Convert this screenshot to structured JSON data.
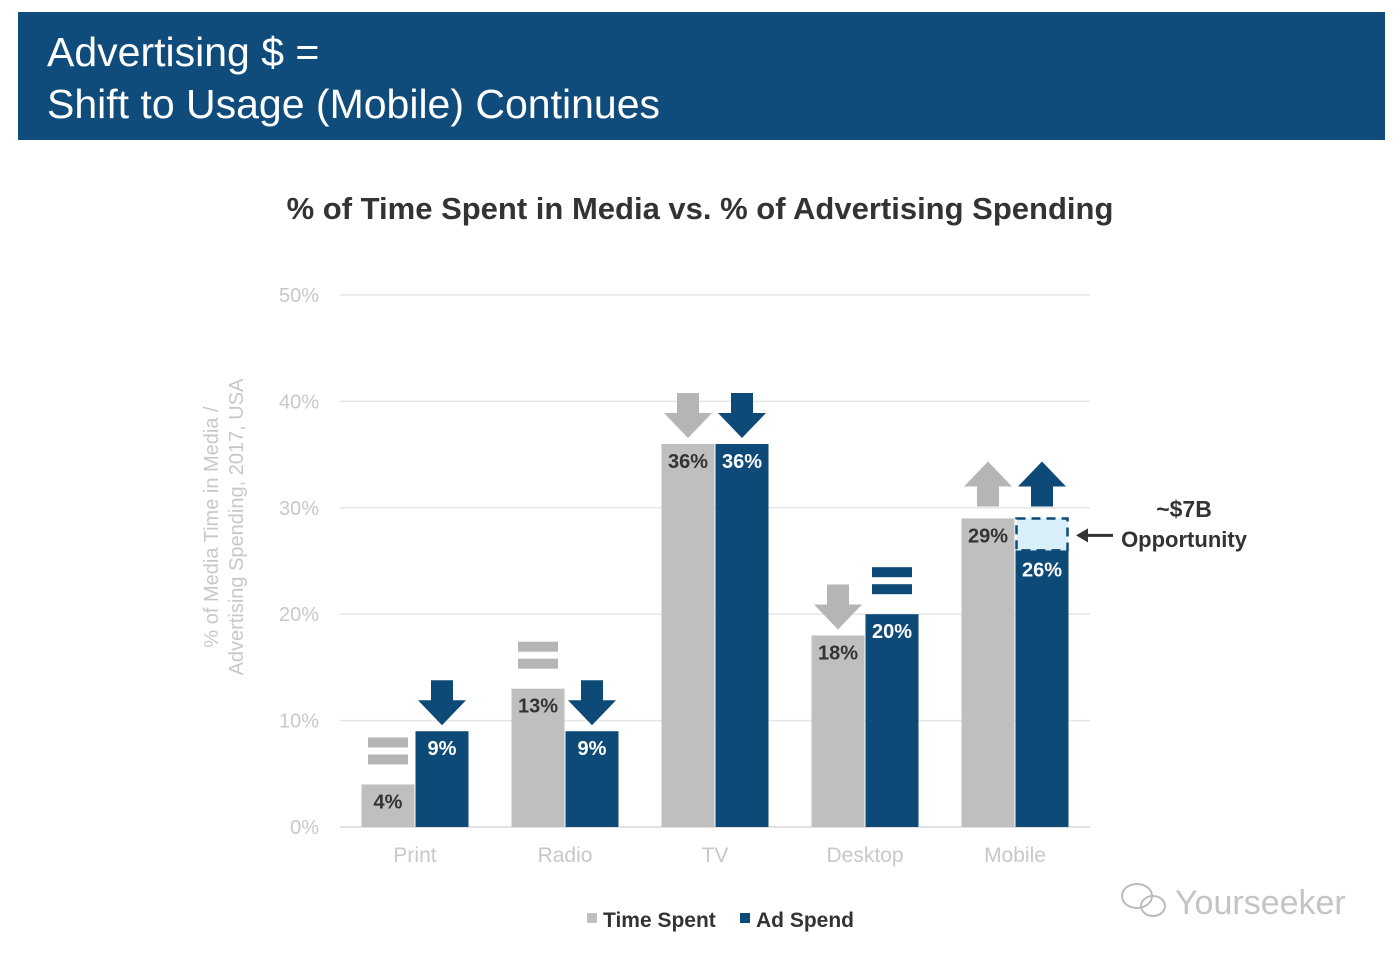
{
  "header": {
    "title_line1": "Advertising $ =",
    "title_line2": "Shift to Usage (Mobile) Continues"
  },
  "colors": {
    "header_bg": "#0f4c7c",
    "time_spent": "#bfbfbf",
    "ad_spend": "#0d4a78",
    "opportunity_fill": "#d9f0fb",
    "text_dark": "#333333",
    "axis_text": "#c8c8c8"
  },
  "chart_data": {
    "type": "bar",
    "title": "% of Time Spent in Media vs. % of Advertising Spending",
    "ylabel_line1": "% of Media Time in Media /",
    "ylabel_line2": "Advertising Spending, 2017, USA",
    "ylim": [
      0,
      50
    ],
    "yticks": [
      "0%",
      "10%",
      "20%",
      "30%",
      "40%",
      "50%"
    ],
    "grid": true,
    "legend_placement": "bottom",
    "categories": [
      "Print",
      "Radio",
      "TV",
      "Desktop",
      "Mobile"
    ],
    "series": [
      {
        "name": "Time Spent",
        "values": [
          4,
          13,
          36,
          18,
          29
        ],
        "labels": [
          "4%",
          "13%",
          "36%",
          "18%",
          "29%"
        ],
        "trend": [
          "flat",
          "flat",
          "down",
          "down",
          "up"
        ]
      },
      {
        "name": "Ad Spend",
        "values": [
          9,
          9,
          36,
          20,
          26
        ],
        "labels": [
          "9%",
          "9%",
          "36%",
          "20%",
          "26%"
        ],
        "trend": [
          "down",
          "down",
          "down",
          "flat",
          "up"
        ]
      }
    ],
    "opportunity": {
      "category": "Mobile",
      "from": 26,
      "to": 29,
      "label_line1": "~$7B",
      "label_line2": "Opportunity"
    }
  },
  "watermark": {
    "text": "Yourseeker"
  }
}
